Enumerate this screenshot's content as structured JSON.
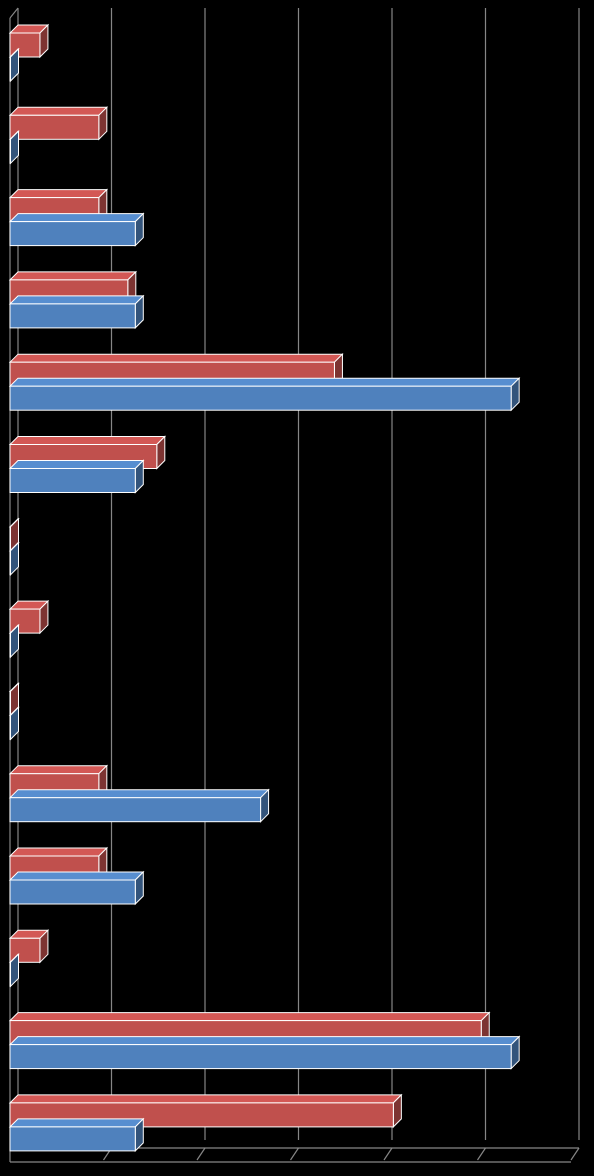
{
  "chart_data": {
    "type": "bar",
    "orientation": "horizontal",
    "style": "3d-clustered",
    "background": "#000000",
    "grid": true,
    "legend": "none",
    "xlim": [
      0,
      6
    ],
    "colors": {
      "series_red": "#C0504D",
      "series_blue": "#4F81BD",
      "grid": "#868686"
    },
    "categories": [
      "",
      "",
      "",
      "",
      "",
      "",
      "",
      "",
      "",
      "",
      "",
      "",
      "",
      ""
    ],
    "series": [
      {
        "color": "#C0504D",
        "values": [
          0.32,
          0.95,
          0.95,
          1.26,
          3.47,
          1.57,
          0.0,
          0.32,
          0.0,
          0.95,
          0.95,
          0.32,
          5.04,
          4.1
        ]
      },
      {
        "color": "#4F81BD",
        "values": [
          0.0,
          0.0,
          1.34,
          1.34,
          5.36,
          1.34,
          0.0,
          0.0,
          0.0,
          2.68,
          1.34,
          0.0,
          5.36,
          1.34
        ]
      }
    ]
  }
}
